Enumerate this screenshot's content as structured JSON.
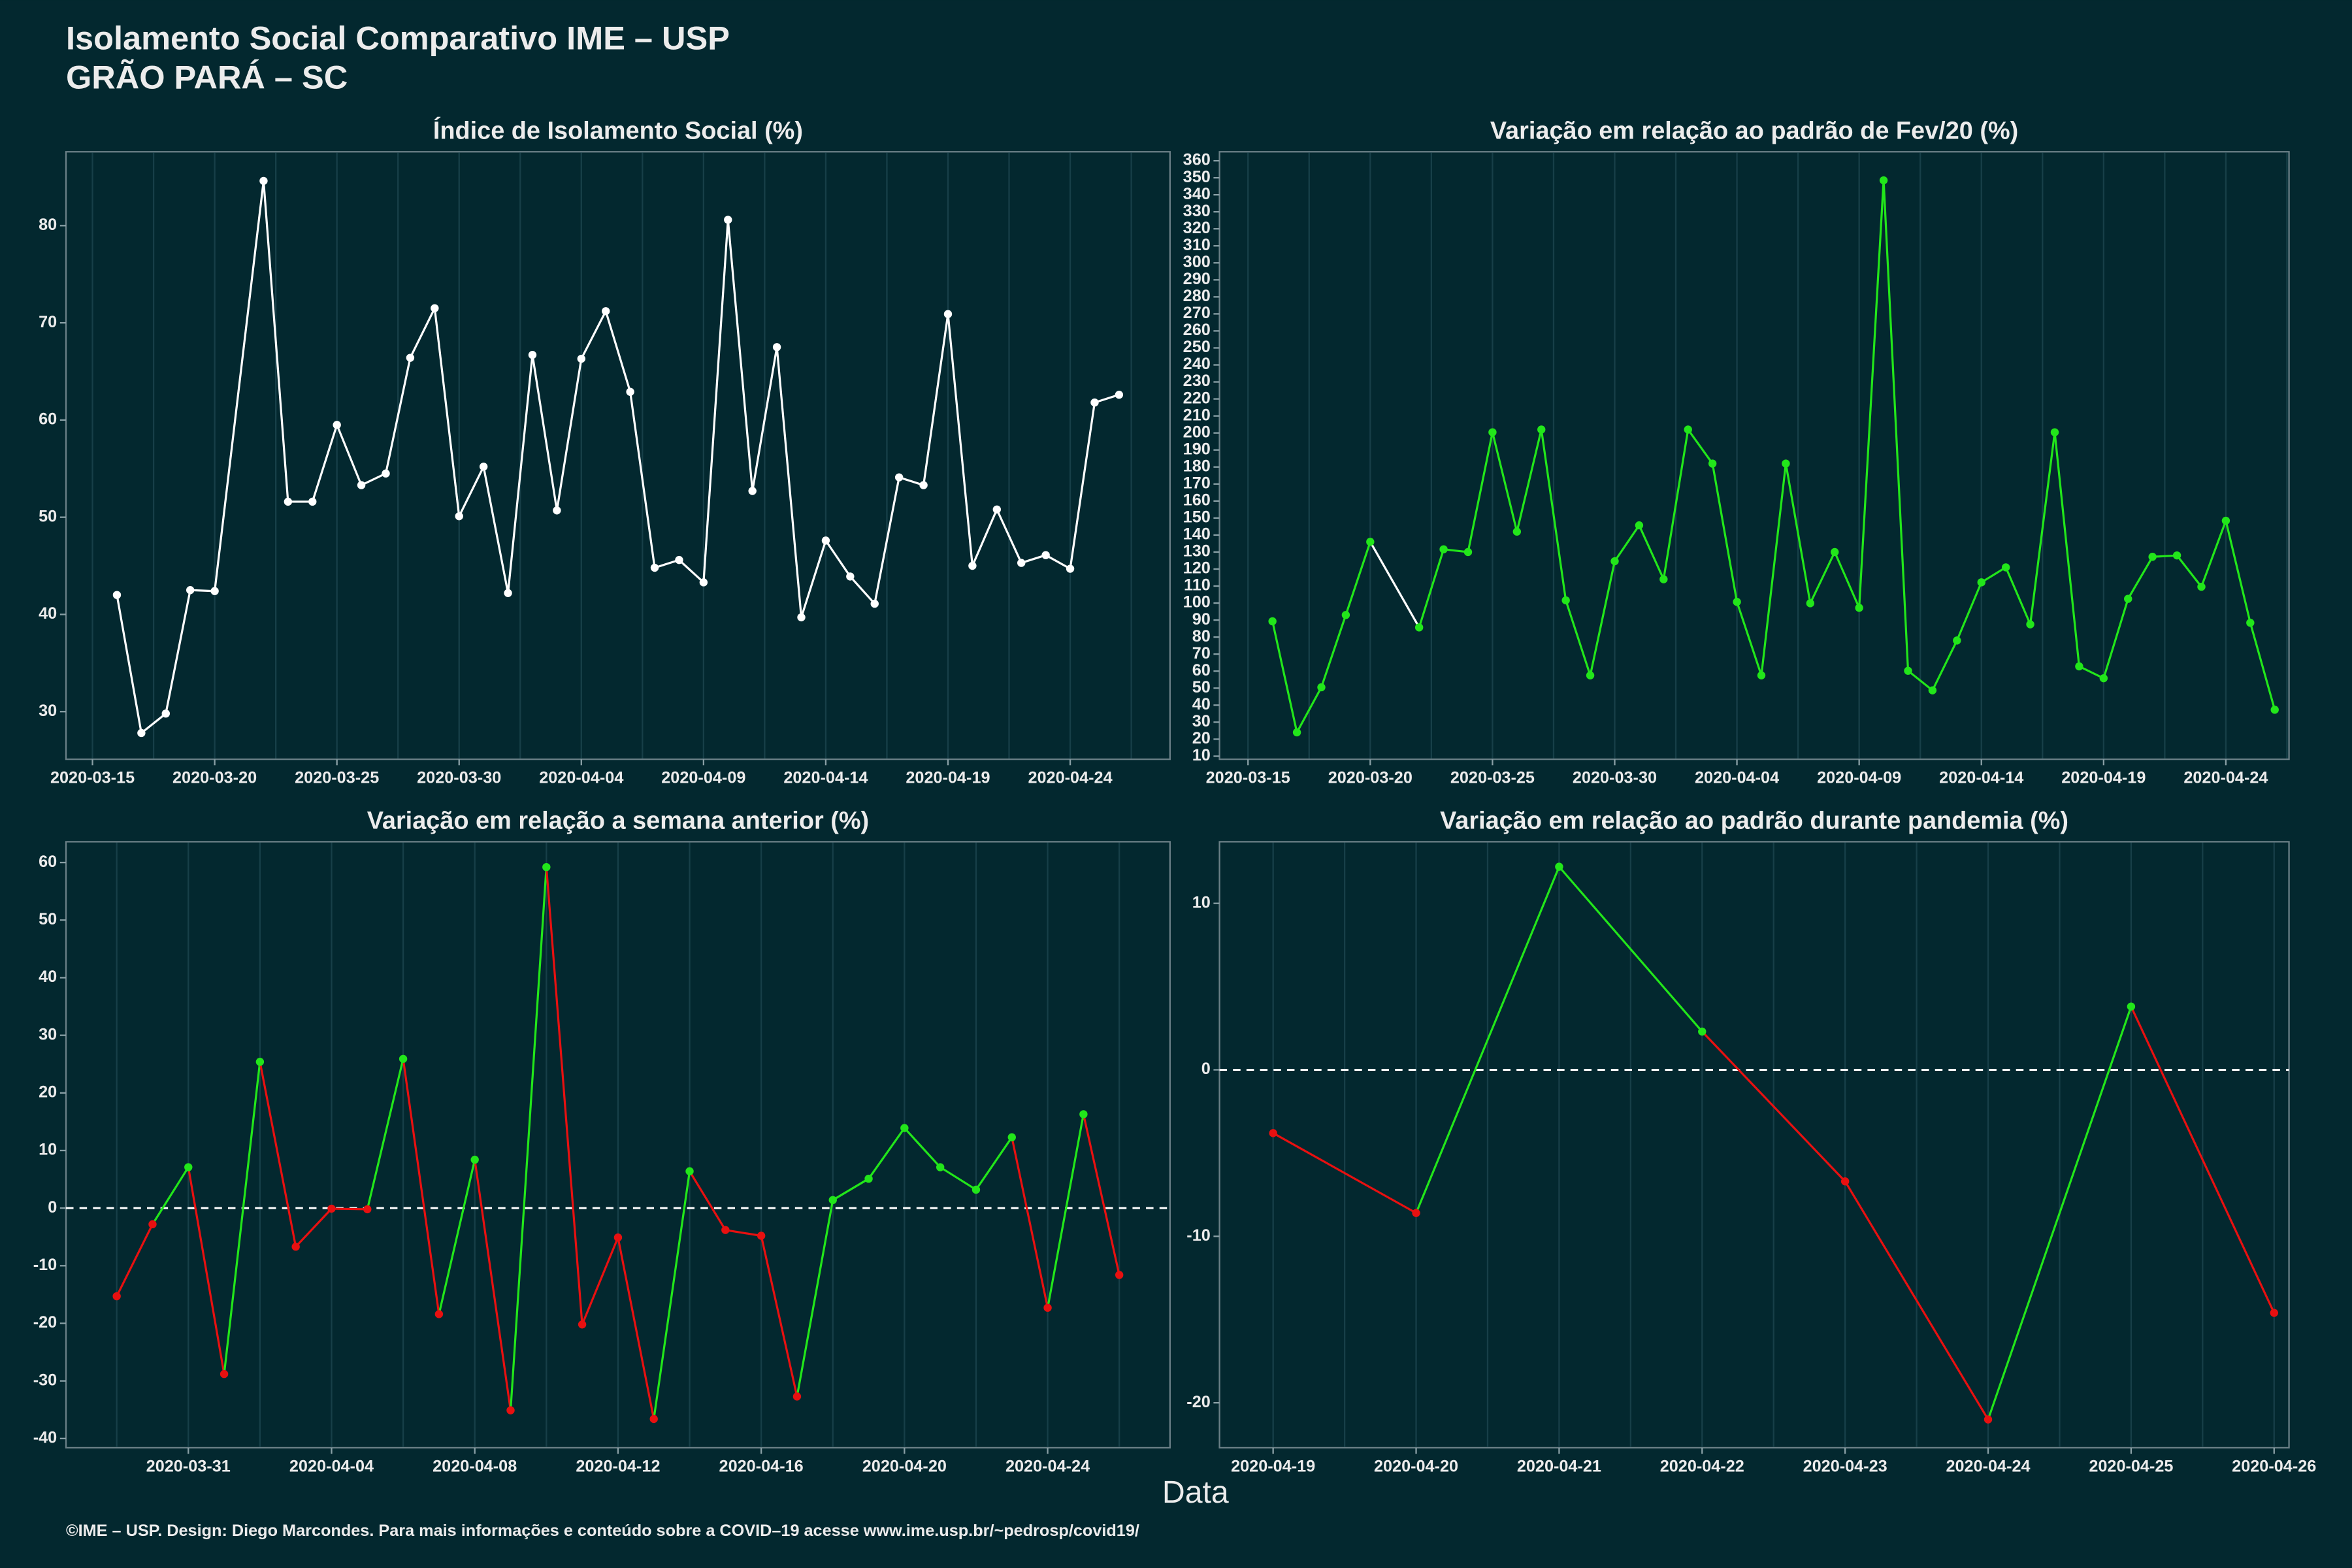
{
  "header": {
    "title": "Isolamento Social Comparativo IME – USP",
    "subtitle": "GRÃO PARÁ – SC"
  },
  "xlabel": "Data",
  "caption": "©IME – USP. Design: Diego Marcondes. Para mais informações e conteúdo sobre a COVID–19 acesse www.ime.usp.br/~pedrosp/covid19/",
  "chart_data": [
    {
      "type": "line",
      "title": "Índice de Isolamento Social (%)",
      "color": "#ffffff",
      "grid": true,
      "x": [
        "2020-03-16",
        "2020-03-17",
        "2020-03-18",
        "2020-03-19",
        "2020-03-20",
        "2020-03-22",
        "2020-03-23",
        "2020-03-24",
        "2020-03-25",
        "2020-03-26",
        "2020-03-27",
        "2020-03-28",
        "2020-03-29",
        "2020-03-30",
        "2020-03-31",
        "2020-04-01",
        "2020-04-02",
        "2020-04-03",
        "2020-04-04",
        "2020-04-05",
        "2020-04-06",
        "2020-04-07",
        "2020-04-08",
        "2020-04-09",
        "2020-04-10",
        "2020-04-11",
        "2020-04-12",
        "2020-04-13",
        "2020-04-14",
        "2020-04-15",
        "2020-04-16",
        "2020-04-17",
        "2020-04-18",
        "2020-04-19",
        "2020-04-20",
        "2020-04-21",
        "2020-04-22",
        "2020-04-23",
        "2020-04-24",
        "2020-04-25",
        "2020-04-26"
      ],
      "values": [
        42.0,
        27.8,
        29.8,
        42.5,
        42.4,
        84.6,
        51.6,
        51.6,
        59.5,
        53.3,
        54.5,
        66.4,
        71.5,
        50.1,
        55.2,
        42.2,
        66.7,
        50.7,
        66.3,
        71.2,
        62.9,
        44.8,
        45.6,
        43.3,
        80.6,
        52.7,
        67.5,
        39.7,
        47.6,
        43.9,
        41.1,
        54.1,
        53.3,
        70.9,
        45.0,
        50.8,
        45.3,
        46.1,
        44.7,
        61.8,
        62.6
      ],
      "xlim": [
        "2020-03-13T22:00",
        "2020-04-28T02:00"
      ],
      "ylim": [
        25.1,
        87.6
      ],
      "xticks": [
        "2020-03-15",
        "2020-03-20",
        "2020-03-25",
        "2020-03-30",
        "2020-04-04",
        "2020-04-09",
        "2020-04-14",
        "2020-04-19",
        "2020-04-24"
      ],
      "yticks": [
        30,
        40,
        50,
        60,
        70,
        80
      ]
    },
    {
      "type": "line",
      "title": "Variação em relação ao padrão de Fev/20 (%)",
      "color": "#22e61a",
      "gap_color": "#ffffff",
      "grid": true,
      "x": [
        "2020-03-16",
        "2020-03-17",
        "2020-03-18",
        "2020-03-19",
        "2020-03-20",
        "2020-03-22",
        "2020-03-23",
        "2020-03-24",
        "2020-03-25",
        "2020-03-26",
        "2020-03-27",
        "2020-03-28",
        "2020-03-29",
        "2020-03-30",
        "2020-03-31",
        "2020-04-01",
        "2020-04-02",
        "2020-04-03",
        "2020-04-04",
        "2020-04-05",
        "2020-04-06",
        "2020-04-07",
        "2020-04-08",
        "2020-04-09",
        "2020-04-10",
        "2020-04-11",
        "2020-04-12",
        "2020-04-13",
        "2020-04-14",
        "2020-04-15",
        "2020-04-16",
        "2020-04-17",
        "2020-04-18",
        "2020-04-19",
        "2020-04-20",
        "2020-04-21",
        "2020-04-22",
        "2020-04-23",
        "2020-04-24",
        "2020-04-25",
        "2020-04-26"
      ],
      "values": [
        89.3,
        24,
        50.5,
        93,
        136,
        85.7,
        131.6,
        130,
        200.4,
        142,
        202,
        101.6,
        57.5,
        124.6,
        145.7,
        114,
        202,
        182,
        100.7,
        57.5,
        182,
        99.9,
        130,
        97.2,
        348.5,
        60.2,
        48.7,
        78,
        112.2,
        121,
        87.5,
        200.4,
        62.8,
        55.8,
        102.5,
        127.2,
        128,
        109.6,
        148.4,
        88.4,
        37.3
      ],
      "xlim": [
        "2020-03-13T20:00",
        "2020-04-26T14:00"
      ],
      "ylim": [
        8.2,
        365.3
      ],
      "xticks": [
        "2020-03-15",
        "2020-03-20",
        "2020-03-25",
        "2020-03-30",
        "2020-04-04",
        "2020-04-09",
        "2020-04-14",
        "2020-04-19",
        "2020-04-24"
      ],
      "yticks": [
        10,
        20,
        30,
        40,
        50,
        60,
        70,
        80,
        90,
        100,
        110,
        120,
        130,
        140,
        150,
        160,
        170,
        180,
        190,
        200,
        210,
        220,
        230,
        240,
        250,
        260,
        270,
        280,
        290,
        300,
        310,
        320,
        330,
        340,
        350,
        360
      ]
    },
    {
      "type": "line",
      "title": "Variação em relação a semana anterior (%)",
      "pos_color": "#22e61a",
      "neg_color": "#e81010",
      "hline": 0,
      "grid": true,
      "x": [
        "2020-03-29",
        "2020-03-30",
        "2020-03-31",
        "2020-04-01",
        "2020-04-02",
        "2020-04-03",
        "2020-04-04",
        "2020-04-05",
        "2020-04-06",
        "2020-04-07",
        "2020-04-08",
        "2020-04-09",
        "2020-04-10",
        "2020-04-11",
        "2020-04-12",
        "2020-04-13",
        "2020-04-14",
        "2020-04-15",
        "2020-04-16",
        "2020-04-17",
        "2020-04-18",
        "2020-04-19",
        "2020-04-20",
        "2020-04-21",
        "2020-04-22",
        "2020-04-23",
        "2020-04-24",
        "2020-04-25",
        "2020-04-26"
      ],
      "values": [
        -15.3,
        -2.8,
        7.1,
        -28.8,
        25.4,
        -6.7,
        -0.1,
        -0.2,
        25.9,
        -18.4,
        8.4,
        -35.1,
        59.2,
        -20.2,
        -5.1,
        -36.6,
        6.4,
        -3.8,
        -4.8,
        -32.7,
        1.4,
        5.1,
        13.9,
        7.1,
        3.2,
        12.3,
        -17.3,
        16.3,
        -11.6
      ],
      "xlim": [
        "2020-03-27T14:00",
        "2020-04-27T10:00"
      ],
      "ylim": [
        -41.6,
        63.6
      ],
      "xticks": [
        "2020-03-31",
        "2020-04-04",
        "2020-04-08",
        "2020-04-12",
        "2020-04-16",
        "2020-04-20",
        "2020-04-24"
      ],
      "yticks": [
        -40,
        -30,
        -20,
        -10,
        0,
        10,
        20,
        30,
        40,
        50,
        60
      ]
    },
    {
      "type": "line",
      "title": "Variação em relação ao padrão durante pandemia (%)",
      "pos_color": "#22e61a",
      "neg_color": "#e81010",
      "hline": 0,
      "grid": true,
      "x": [
        "2020-04-19",
        "2020-04-20",
        "2020-04-21",
        "2020-04-22",
        "2020-04-23",
        "2020-04-24",
        "2020-04-25",
        "2020-04-26"
      ],
      "values": [
        -3.8,
        -8.6,
        12.2,
        2.3,
        -6.7,
        -21.0,
        3.8,
        -14.6
      ],
      "xlim": [
        "2020-04-18T15:00",
        "2020-04-26T02:30"
      ],
      "ylim": [
        -22.7,
        13.7
      ],
      "xticks": [
        "2020-04-19",
        "2020-04-20",
        "2020-04-21",
        "2020-04-22",
        "2020-04-23",
        "2020-04-24",
        "2020-04-25",
        "2020-04-26"
      ],
      "yticks": [
        -20,
        -10,
        0,
        10
      ]
    }
  ]
}
